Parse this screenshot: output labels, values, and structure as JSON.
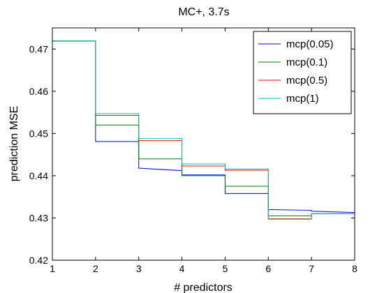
{
  "chart_data": {
    "type": "line",
    "title": "MC+, 3.7s",
    "xlabel": "# predictors",
    "ylabel": "prediction MSE",
    "xlim": [
      1,
      8
    ],
    "ylim": [
      0.42,
      0.475
    ],
    "xticks": [
      "1",
      "2",
      "3",
      "4",
      "5",
      "6",
      "7",
      "8"
    ],
    "yticks": [
      "0.42",
      "0.43",
      "0.44",
      "0.45",
      "0.46",
      "0.47"
    ],
    "legend_position": "top-right",
    "step_style": "stairs",
    "series": [
      {
        "name": "mcp(0.05)",
        "color": "#0000ff",
        "points": [
          [
            1,
            0.4719
          ],
          [
            2,
            0.4719
          ],
          [
            2,
            0.4481
          ],
          [
            3,
            0.4481
          ],
          [
            3,
            0.4418
          ],
          [
            4,
            0.4412
          ],
          [
            4,
            0.4402
          ],
          [
            5,
            0.4402
          ],
          [
            5,
            0.4358
          ],
          [
            6,
            0.4358
          ],
          [
            6,
            0.432
          ],
          [
            7,
            0.4318
          ],
          [
            7,
            0.4316
          ],
          [
            8,
            0.4313
          ]
        ]
      },
      {
        "name": "mcp(0.1)",
        "color": "#007f00",
        "points": [
          [
            1,
            0.4719
          ],
          [
            2,
            0.4719
          ],
          [
            2,
            0.452
          ],
          [
            3,
            0.452
          ],
          [
            3,
            0.444
          ],
          [
            4,
            0.444
          ],
          [
            4,
            0.44
          ],
          [
            5,
            0.44
          ],
          [
            5,
            0.4375
          ],
          [
            6,
            0.4375
          ],
          [
            6,
            0.4305
          ],
          [
            7,
            0.4305
          ],
          [
            7,
            0.431
          ],
          [
            8,
            0.431
          ]
        ]
      },
      {
        "name": "mcp(0.5)",
        "color": "#ff0000",
        "points": [
          [
            1,
            0.4719
          ],
          [
            2,
            0.4719
          ],
          [
            2,
            0.4543
          ],
          [
            3,
            0.4543
          ],
          [
            3,
            0.4483
          ],
          [
            4,
            0.4483
          ],
          [
            4,
            0.4423
          ],
          [
            5,
            0.4423
          ],
          [
            5,
            0.4413
          ],
          [
            6,
            0.4413
          ],
          [
            6,
            0.4298
          ],
          [
            7,
            0.4298
          ],
          [
            7,
            0.431
          ],
          [
            8,
            0.431
          ]
        ]
      },
      {
        "name": "mcp(1)",
        "color": "#00bfbf",
        "points": [
          [
            1,
            0.4719
          ],
          [
            2,
            0.4719
          ],
          [
            2,
            0.4547
          ],
          [
            3,
            0.4547
          ],
          [
            3,
            0.4488
          ],
          [
            4,
            0.4488
          ],
          [
            4,
            0.4428
          ],
          [
            5,
            0.4428
          ],
          [
            5,
            0.4416
          ],
          [
            6,
            0.4416
          ],
          [
            6,
            0.4297
          ],
          [
            7,
            0.4297
          ],
          [
            7,
            0.431
          ],
          [
            8,
            0.431
          ]
        ]
      }
    ]
  }
}
